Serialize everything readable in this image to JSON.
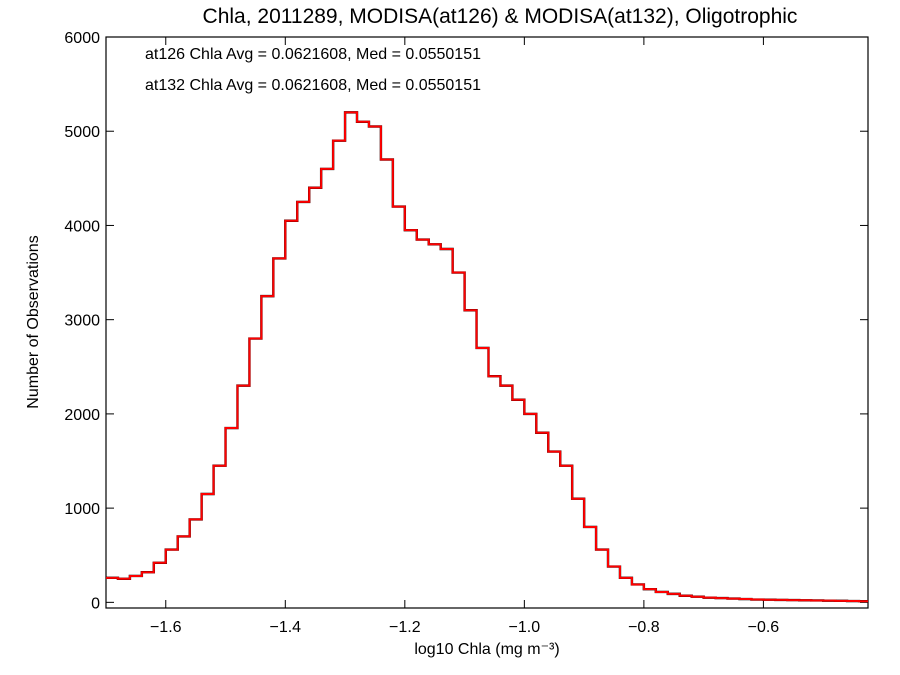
{
  "chart_data": {
    "type": "line",
    "title": "Chla, 2011289, MODISA(at126) & MODISA(at132), Oligotrophic",
    "xlabel": "log10 Chla (mg m⁻³)",
    "ylabel": "Number of Observations",
    "xlim": [
      -1.7,
      -0.425
    ],
    "ylim": [
      -60,
      6000
    ],
    "xticks": [
      -1.6,
      -1.4,
      -1.2,
      -1.0,
      -0.8,
      -0.6
    ],
    "xtick_labels": [
      "−1.6",
      "−1.4",
      "−1.2",
      "−1.0",
      "−0.8",
      "−0.6"
    ],
    "yticks": [
      0,
      1000,
      2000,
      3000,
      4000,
      5000,
      6000
    ],
    "ytick_labels": [
      "0",
      "1000",
      "2000",
      "3000",
      "4000",
      "5000",
      "6000"
    ],
    "annotations": [
      {
        "text": "at126 Chla Avg = 0.0621608, Med = 0.0550151",
        "color": "#000000"
      },
      {
        "text": "at132 Chla Avg = 0.0621608, Med = 0.0550151",
        "color": "#ff0000"
      }
    ],
    "series": [
      {
        "color": "#000000",
        "x": [
          -1.7,
          -1.68,
          -1.66,
          -1.64,
          -1.62,
          -1.6,
          -1.58,
          -1.56,
          -1.54,
          -1.52,
          -1.5,
          -1.48,
          -1.46,
          -1.44,
          -1.42,
          -1.4,
          -1.38,
          -1.36,
          -1.34,
          -1.32,
          -1.3,
          -1.28,
          -1.26,
          -1.24,
          -1.22,
          -1.2,
          -1.18,
          -1.16,
          -1.14,
          -1.12,
          -1.1,
          -1.08,
          -1.06,
          -1.04,
          -1.02,
          -1.0,
          -0.98,
          -0.96,
          -0.94,
          -0.92,
          -0.9,
          -0.88,
          -0.86,
          -0.84,
          -0.82,
          -0.8,
          -0.78,
          -0.76,
          -0.74,
          -0.72,
          -0.7,
          -0.68,
          -0.66,
          -0.64,
          -0.62,
          -0.6,
          -0.58,
          -0.56,
          -0.54,
          -0.52,
          -0.5,
          -0.48,
          -0.46,
          -0.44
        ],
        "y": [
          260,
          250,
          280,
          320,
          420,
          560,
          700,
          880,
          1150,
          1450,
          1850,
          2300,
          2800,
          3250,
          3650,
          4050,
          4250,
          4400,
          4600,
          4900,
          5200,
          5100,
          5050,
          4700,
          4200,
          3950,
          3850,
          3800,
          3750,
          3500,
          3100,
          2700,
          2400,
          2300,
          2150,
          2000,
          1800,
          1600,
          1450,
          1100,
          800,
          560,
          380,
          260,
          190,
          140,
          110,
          90,
          70,
          60,
          50,
          45,
          40,
          35,
          30,
          28,
          26,
          24,
          22,
          20,
          18,
          16,
          14,
          12
        ]
      },
      {
        "color": "#ff0000",
        "x": [
          -1.7,
          -1.68,
          -1.66,
          -1.64,
          -1.62,
          -1.6,
          -1.58,
          -1.56,
          -1.54,
          -1.52,
          -1.5,
          -1.48,
          -1.46,
          -1.44,
          -1.42,
          -1.4,
          -1.38,
          -1.36,
          -1.34,
          -1.32,
          -1.3,
          -1.28,
          -1.26,
          -1.24,
          -1.22,
          -1.2,
          -1.18,
          -1.16,
          -1.14,
          -1.12,
          -1.1,
          -1.08,
          -1.06,
          -1.04,
          -1.02,
          -1.0,
          -0.98,
          -0.96,
          -0.94,
          -0.92,
          -0.9,
          -0.88,
          -0.86,
          -0.84,
          -0.82,
          -0.8,
          -0.78,
          -0.76,
          -0.74,
          -0.72,
          -0.7,
          -0.68,
          -0.66,
          -0.64,
          -0.62,
          -0.6,
          -0.58,
          -0.56,
          -0.54,
          -0.52,
          -0.5,
          -0.48,
          -0.46,
          -0.44
        ],
        "y": [
          260,
          250,
          280,
          320,
          420,
          560,
          700,
          880,
          1150,
          1450,
          1850,
          2300,
          2800,
          3250,
          3650,
          4050,
          4250,
          4400,
          4600,
          4900,
          5200,
          5100,
          5050,
          4700,
          4200,
          3950,
          3850,
          3800,
          3750,
          3500,
          3100,
          2700,
          2400,
          2300,
          2150,
          2000,
          1800,
          1600,
          1450,
          1100,
          800,
          560,
          380,
          260,
          190,
          140,
          110,
          90,
          70,
          60,
          50,
          45,
          40,
          35,
          30,
          28,
          26,
          24,
          22,
          20,
          18,
          16,
          14,
          12
        ]
      }
    ],
    "grid": false,
    "step": true
  }
}
